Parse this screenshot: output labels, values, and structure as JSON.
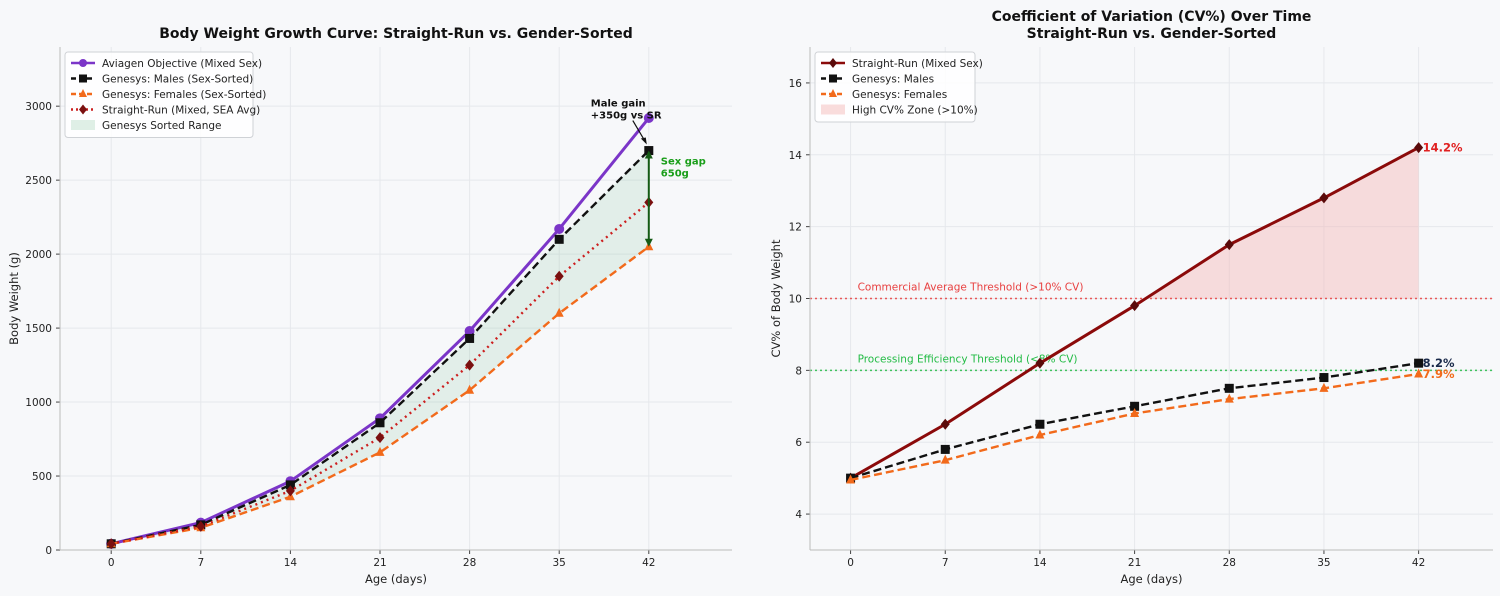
{
  "chart_data": [
    {
      "type": "line",
      "title": "Body Weight Growth Curve: Straight-Run vs. Gender-Sorted",
      "xlabel": "Age (days)",
      "ylabel": "Body Weight (g)",
      "x": [
        0,
        7,
        14,
        21,
        28,
        35,
        42
      ],
      "xlim": [
        -4,
        48.5
      ],
      "ylim": [
        0,
        3400
      ],
      "yticks": [
        0,
        500,
        1000,
        1500,
        2000,
        2500,
        3000
      ],
      "grid": true,
      "legend_position": "top-left",
      "series": [
        {
          "name": "Aviagen Objective (Mixed Sex)",
          "color": "#7b35c8",
          "style": "solid",
          "marker": "circle",
          "values": [
            42,
            185,
            465,
            890,
            1480,
            2170,
            2920
          ]
        },
        {
          "name": "Genesys: Males (Sex-Sorted)",
          "color": "#111111",
          "style": "dashed",
          "marker": "square",
          "values": [
            42,
            170,
            440,
            860,
            1430,
            2100,
            2700
          ]
        },
        {
          "name": "Genesys: Females (Sex-Sorted)",
          "color": "#f26a1b",
          "style": "dashed",
          "marker": "triangle",
          "values": [
            42,
            150,
            360,
            660,
            1080,
            1600,
            2050
          ]
        },
        {
          "name": "Straight-Run (Mixed, SEA Avg)",
          "color": "#cc1f1f",
          "marker_color": "#7a1010",
          "style": "dotted",
          "marker": "diamond",
          "values": [
            42,
            160,
            400,
            760,
            1250,
            1850,
            2350
          ]
        }
      ],
      "band": {
        "name": "Genesys Sorted Range",
        "color": "#2e9d55",
        "lower_series": 2,
        "upper_series": 1
      },
      "annotations": {
        "male_gain": {
          "line1": "Male gain",
          "line2": "+350g vs SR",
          "x": 42,
          "y": 2700
        },
        "sex_gap": {
          "line1": "Sex gap",
          "line2": "650g",
          "x": 42,
          "y_top": 2700,
          "y_bottom": 2050,
          "color": "#1a9e1a"
        }
      }
    },
    {
      "type": "line",
      "title": "Coefficient of Variation (CV%) Over Time",
      "subtitle": "Straight-Run vs. Gender-Sorted",
      "xlabel": "Age (days)",
      "ylabel": "CV% of Body Weight",
      "x": [
        0,
        7,
        14,
        21,
        28,
        35,
        42
      ],
      "xlim": [
        -3,
        47.5
      ],
      "ylim": [
        3,
        17
      ],
      "yticks": [
        4,
        6,
        8,
        10,
        12,
        14,
        16
      ],
      "grid": true,
      "legend_position": "top-left",
      "series": [
        {
          "name": "Straight-Run (Mixed Sex)",
          "color": "#8b0a0a",
          "marker_color": "#5a0a0a",
          "style": "solid",
          "marker": "diamond",
          "values": [
            5.0,
            6.5,
            8.2,
            9.8,
            11.5,
            12.8,
            14.2
          ],
          "end_label": "14.2%",
          "end_label_color": "#e02020"
        },
        {
          "name": "Genesys: Males",
          "color": "#111111",
          "style": "dashed",
          "marker": "square",
          "values": [
            5.0,
            5.8,
            6.5,
            7.0,
            7.5,
            7.8,
            8.2
          ],
          "end_label": "8.2%",
          "end_label_color": "#1a2a4a"
        },
        {
          "name": "Genesys: Females",
          "color": "#f26a1b",
          "style": "dashed",
          "marker": "triangle",
          "values": [
            4.95,
            5.5,
            6.2,
            6.8,
            7.2,
            7.5,
            7.9
          ],
          "end_label": "7.9%",
          "end_label_color": "#f26a1b"
        }
      ],
      "zone": {
        "name": "High CV% Zone (>10%)",
        "color": "#f4b9b9",
        "threshold": 10
      },
      "thresholds": [
        {
          "label": "Commercial Average Threshold (>10% CV)",
          "value": 10,
          "color": "#e84040"
        },
        {
          "label": "Processing Efficiency Threshold (<8% CV)",
          "value": 8,
          "color": "#22bb44"
        }
      ]
    }
  ]
}
